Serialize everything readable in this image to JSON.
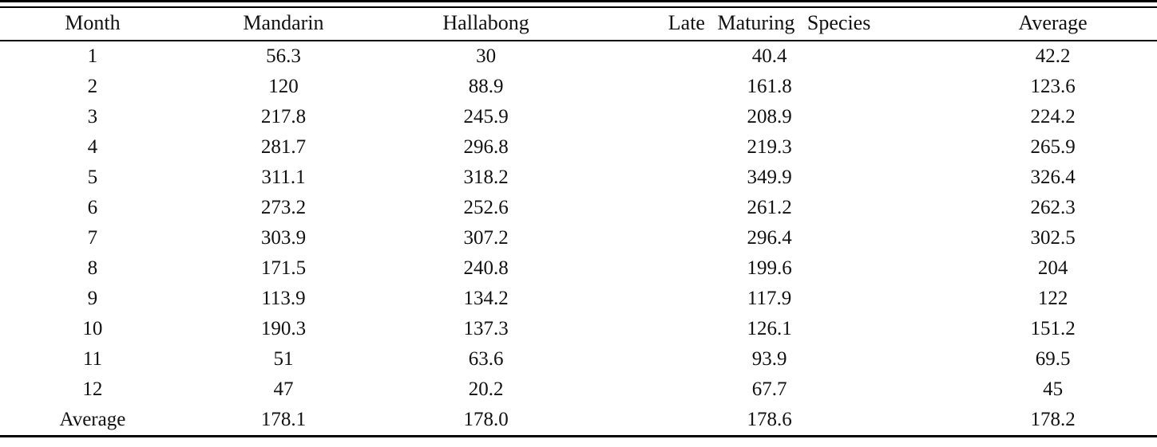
{
  "table": {
    "columns": [
      "Month",
      "Mandarin",
      "Hallabong",
      "Late Maturing Species",
      "Average"
    ],
    "rows": [
      [
        "1",
        "56.3",
        "30",
        "40.4",
        "42.2"
      ],
      [
        "2",
        "120",
        "88.9",
        "161.8",
        "123.6"
      ],
      [
        "3",
        "217.8",
        "245.9",
        "208.9",
        "224.2"
      ],
      [
        "4",
        "281.7",
        "296.8",
        "219.3",
        "265.9"
      ],
      [
        "5",
        "311.1",
        "318.2",
        "349.9",
        "326.4"
      ],
      [
        "6",
        "273.2",
        "252.6",
        "261.2",
        "262.3"
      ],
      [
        "7",
        "303.9",
        "307.2",
        "296.4",
        "302.5"
      ],
      [
        "8",
        "171.5",
        "240.8",
        "199.6",
        "204"
      ],
      [
        "9",
        "113.9",
        "134.2",
        "117.9",
        "122"
      ],
      [
        "10",
        "190.3",
        "137.3",
        "126.1",
        "151.2"
      ],
      [
        "11",
        "51",
        "63.6",
        "93.9",
        "69.5"
      ],
      [
        "12",
        "47",
        "20.2",
        "67.7",
        "45"
      ],
      [
        "Average",
        "178.1",
        "178.0",
        "178.6",
        "178.2"
      ]
    ]
  },
  "chart_data": {
    "type": "table",
    "title": "",
    "columns": [
      "Month",
      "Mandarin",
      "Hallabong",
      "Late Maturing Species",
      "Average"
    ],
    "categories": [
      1,
      2,
      3,
      4,
      5,
      6,
      7,
      8,
      9,
      10,
      11,
      12
    ],
    "series": [
      {
        "name": "Mandarin",
        "values": [
          56.3,
          120,
          217.8,
          281.7,
          311.1,
          273.2,
          303.9,
          171.5,
          113.9,
          190.3,
          51,
          47
        ],
        "average": 178.1
      },
      {
        "name": "Hallabong",
        "values": [
          30,
          88.9,
          245.9,
          296.8,
          318.2,
          252.6,
          307.2,
          240.8,
          134.2,
          137.3,
          63.6,
          20.2
        ],
        "average": 178.0
      },
      {
        "name": "Late Maturing Species",
        "values": [
          40.4,
          161.8,
          208.9,
          219.3,
          349.9,
          261.2,
          296.4,
          199.6,
          117.9,
          126.1,
          93.9,
          67.7
        ],
        "average": 178.6
      },
      {
        "name": "Average",
        "values": [
          42.2,
          123.6,
          224.2,
          265.9,
          326.4,
          262.3,
          302.5,
          204,
          122,
          151.2,
          69.5,
          45
        ],
        "average": 178.2
      }
    ]
  },
  "style": {
    "background": "#ffffff",
    "text_color": "#111111",
    "rule_color": "#000000"
  }
}
